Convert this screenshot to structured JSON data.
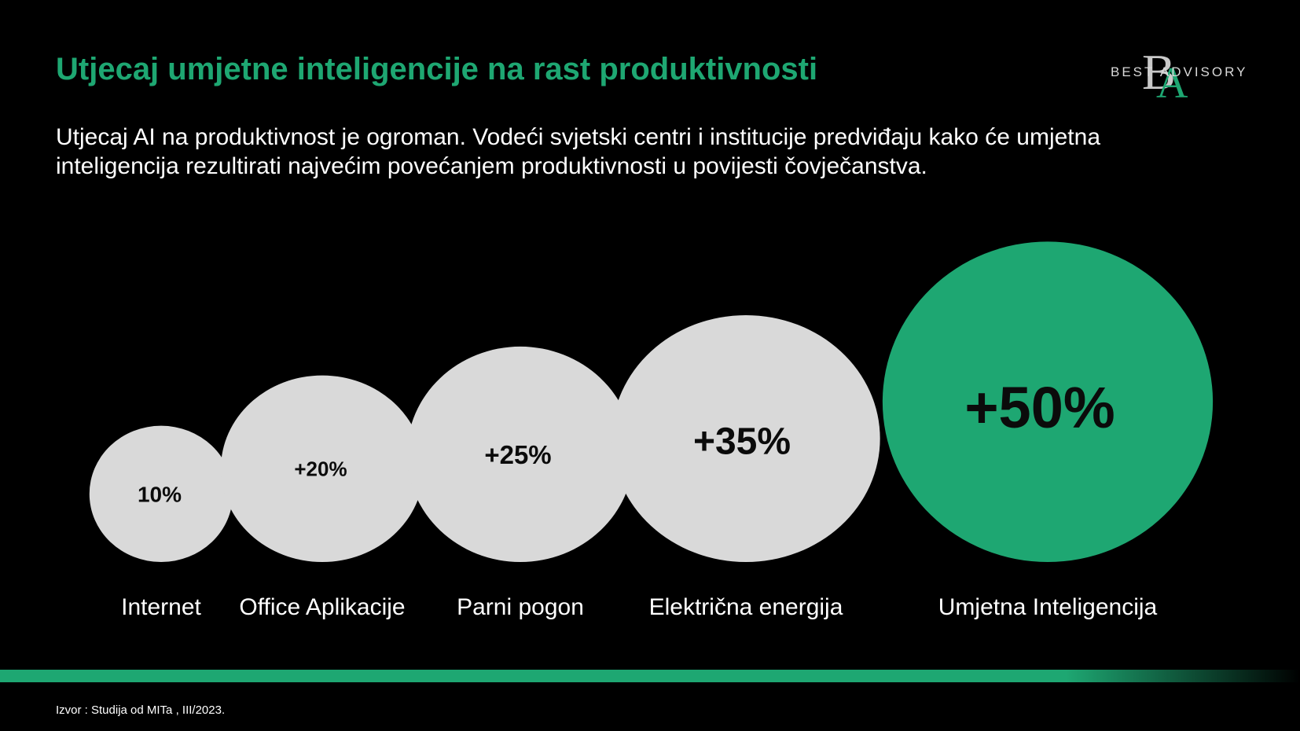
{
  "header": {
    "title": "Utjecaj umjetne inteligencije na  rast produktivnosti",
    "subtitle": "Utjecaj AI na produktivnost je ogroman.  Vodeći svjetski centri i institucije predviđaju kako će umjetna inteligencija rezultirati najvećim povećanjem produktivnosti u povijesti čovječanstva."
  },
  "logo": {
    "text": "BEST ADVISORY",
    "monogram": "BA"
  },
  "chart_data": {
    "type": "bubble",
    "categories": [
      "Internet",
      "Office Aplikacije",
      "Parni pogon",
      "Električna energija",
      "Umjetna Inteligencija"
    ],
    "values": [
      10,
      20,
      25,
      35,
      50
    ],
    "labels": [
      "10%",
      "+20%",
      "+25%",
      "+35%",
      "+50%"
    ],
    "colors": [
      "#d9d9d9",
      "#d9d9d9",
      "#d9d9d9",
      "#d9d9d9",
      "#1ea772"
    ]
  },
  "footer": {
    "source": "Izvor : Studija od MITa , III/2023."
  },
  "colors": {
    "accent": "#1ea772",
    "background": "#000000",
    "bubble": "#d9d9d9"
  }
}
